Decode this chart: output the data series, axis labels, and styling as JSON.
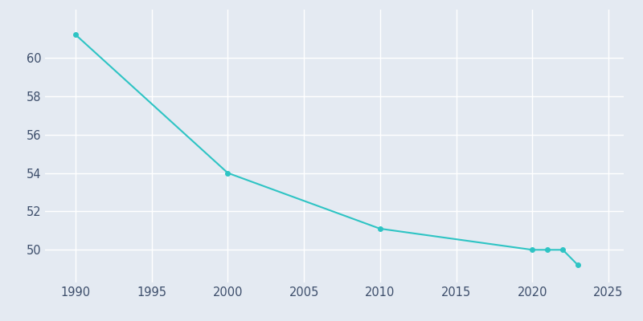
{
  "years": [
    1990,
    2000,
    2010,
    2020,
    2021,
    2022,
    2023
  ],
  "population": [
    61.2,
    54.0,
    51.1,
    50.0,
    50.0,
    50.0,
    49.2
  ],
  "line_color": "#2ec4c4",
  "marker_color": "#2ec4c4",
  "bg_color": "#e4eaf2",
  "grid_color": "#ffffff",
  "xlabel": "",
  "ylabel": "",
  "xlim": [
    1988,
    2026
  ],
  "ylim": [
    48.3,
    62.5
  ],
  "yticks": [
    50,
    52,
    54,
    56,
    58,
    60
  ],
  "xticks": [
    1990,
    1995,
    2000,
    2005,
    2010,
    2015,
    2020,
    2025
  ],
  "tick_color": "#3d4e6b",
  "marker_size": 4,
  "line_width": 1.5,
  "figsize": [
    8.0,
    4.0
  ],
  "dpi": 100
}
